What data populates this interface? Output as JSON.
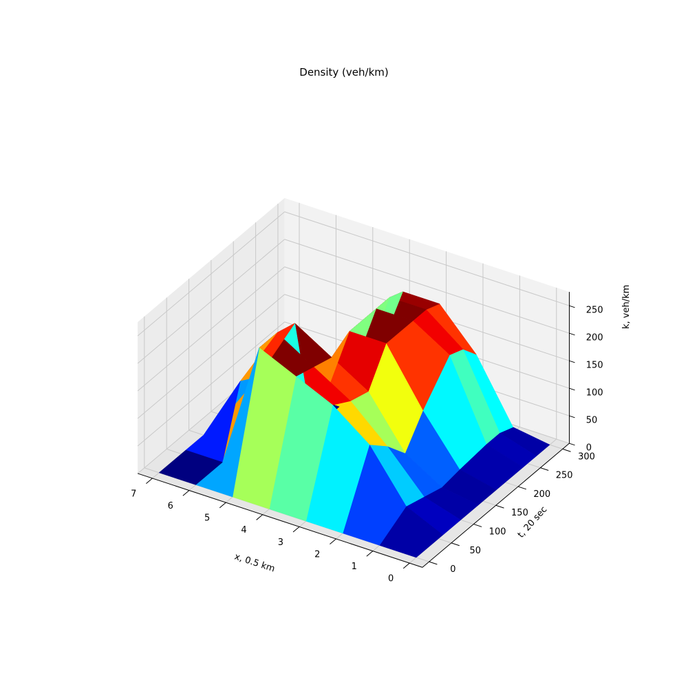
{
  "chart_data": {
    "type": "surface3d",
    "title": "Density (veh/km)",
    "xlabel": "x, 0.5 km",
    "ylabel": "t, 20 sec",
    "zlabel": "k, veh/km",
    "x_ticks": [
      "0",
      "1",
      "2",
      "3",
      "4",
      "5",
      "6",
      "7"
    ],
    "y_ticks": [
      "0",
      "50",
      "100",
      "150",
      "200",
      "250",
      "300"
    ],
    "z_ticks": [
      "0",
      "50",
      "100",
      "150",
      "200",
      "250"
    ],
    "xlim": [
      0,
      7
    ],
    "ylim": [
      0,
      300
    ],
    "zlim": [
      0,
      250
    ],
    "grid": true,
    "colormap": "jet",
    "x": [
      0,
      1,
      2,
      3,
      4,
      5,
      6,
      7
    ],
    "t": [
      0,
      60,
      100,
      140,
      180,
      240,
      270,
      300
    ],
    "density": [
      [
        0,
        0,
        0,
        0,
        0,
        0,
        0,
        0
      ],
      [
        0,
        30,
        120,
        170,
        200,
        230,
        0,
        0
      ],
      [
        0,
        20,
        90,
        150,
        190,
        230,
        120,
        0
      ],
      [
        0,
        10,
        50,
        140,
        180,
        220,
        100,
        0
      ],
      [
        0,
        15,
        100,
        200,
        200,
        0,
        0,
        0
      ],
      [
        0,
        20,
        160,
        200,
        200,
        0,
        0,
        0
      ],
      [
        0,
        20,
        150,
        200,
        200,
        0,
        0,
        0
      ],
      [
        0,
        10,
        120,
        190,
        190,
        0,
        0,
        0
      ]
    ]
  }
}
